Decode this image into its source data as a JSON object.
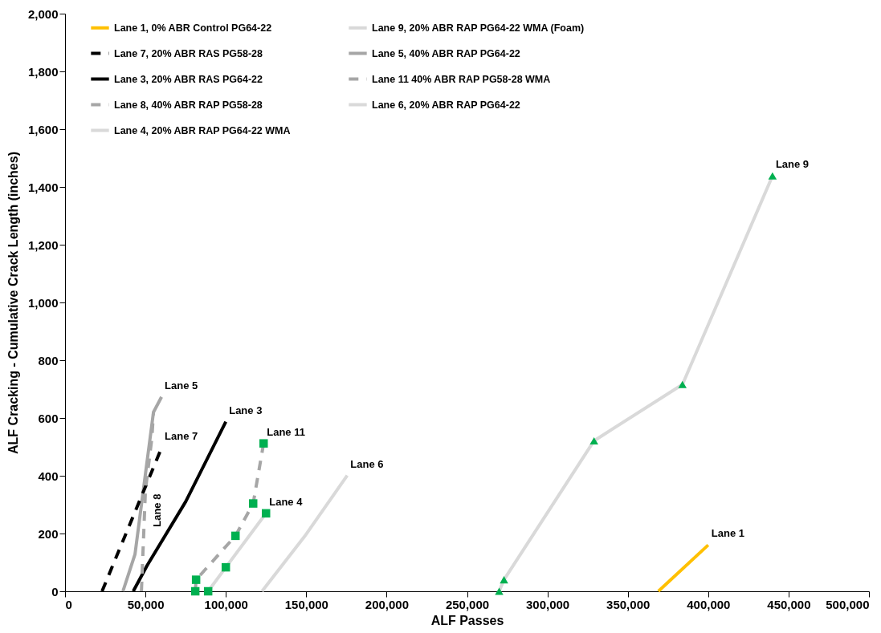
{
  "chart_data": {
    "type": "line",
    "xlabel": "ALF Passes",
    "ylabel": "ALF Cracking - Cumulative Crack Length (inches)",
    "xlim": [
      0,
      500000
    ],
    "xticks": [
      0,
      {
        "value": 50000,
        "label": "50,000"
      },
      {
        "value": 100000,
        "label": "100,000"
      },
      {
        "value": 150000,
        "label": "150,000"
      },
      {
        "value": 200000,
        "label": "200,000"
      },
      {
        "value": 250000,
        "label": "250,000"
      },
      {
        "value": 300000,
        "label": "300,000"
      },
      {
        "value": 350000,
        "label": "350,000"
      },
      {
        "value": 400000,
        "label": "400,000"
      },
      {
        "value": 450000,
        "label": "450,000"
      },
      {
        "value": 500000,
        "label": "500,000"
      }
    ],
    "ylim": [
      0,
      2000
    ],
    "yticks": [
      0,
      200,
      400,
      600,
      800,
      {
        "value": 1000,
        "label": "1,000"
      },
      {
        "value": 1200,
        "label": "1,200"
      },
      {
        "value": 1400,
        "label": "1,400"
      },
      {
        "value": 1600,
        "label": "1,600"
      },
      {
        "value": 1800,
        "label": "1,800"
      },
      {
        "value": 2000,
        "label": "2,000"
      }
    ],
    "grid": false,
    "legend": "top",
    "series": [
      {
        "name": "Lane 1,  0% ABR Control PG64-22",
        "color": "#ffc000",
        "line_style": "solid",
        "x": [
          369000,
          400000
        ],
        "values": [
          0,
          160
        ]
      },
      {
        "name": "Lane 3,  20% ABR RAS PG64-22",
        "color": "#000000",
        "line_style": "solid",
        "x": [
          42400,
          51000,
          75000,
          100000
        ],
        "values": [
          0,
          89,
          310,
          587
        ]
      },
      {
        "name": "Lane 4,  20% ABR RAP PG64-22 WMA",
        "color": "#d9d9d9",
        "line_style": "solid",
        "x": [
          89000,
          100000,
          125000
        ],
        "values": [
          0,
          83,
          270
        ]
      },
      {
        "name": "Lane 5,  40% ABR RAP PG64-22",
        "color": "#a6a6a6",
        "line_style": "solid",
        "x": [
          36000,
          43500,
          55000,
          60000
        ],
        "values": [
          0,
          128,
          620,
          673
        ]
      },
      {
        "name": "Lane 6, 20% ABR RAP PG64-22",
        "color": "#d9d9d9",
        "line_style": "solid",
        "x": [
          122500,
          149000,
          175500
        ],
        "values": [
          0,
          190,
          401
        ]
      },
      {
        "name": "Lane 7, 20% ABR RAS PG58-28",
        "color": "#000000",
        "line_style": "dashed",
        "x": [
          23000,
          60000
        ],
        "values": [
          0,
          496
        ]
      },
      {
        "name": "Lane 8, 40% ABR RAP PG58-28",
        "color": "#a6a6a6",
        "line_style": "dashed",
        "x": [
          47500,
          50000,
          54000,
          55000
        ],
        "values": [
          0,
          350,
          530,
          620
        ]
      },
      {
        "name": "Lane 9, 20% ABR RAP PG64-22 WMA (Foam)",
        "color": "#d9d9d9",
        "line_style": "solid",
        "x": [
          270000,
          273000,
          329000,
          384000,
          440000
        ],
        "values": [
          0,
          40,
          521,
          716,
          1438
        ]
      },
      {
        "name": "Lane 11 40% ABR RAP PG58-28 WMA",
        "color": "#a6a6a6",
        "line_style": "dashed",
        "x": [
          81000,
          81500,
          106000,
          117000,
          123500
        ],
        "values": [
          0,
          40,
          192,
          304,
          512
        ]
      },
      {
        "type": "scatter",
        "marker": "square",
        "color": "#00b050",
        "x": [
          89000,
          100000,
          125000
        ],
        "values": [
          0,
          83,
          270
        ]
      },
      {
        "type": "scatter",
        "marker": "triangle",
        "color": "#00b050",
        "x": [
          270000,
          273000,
          329000,
          384000,
          440000
        ],
        "values": [
          0,
          40,
          521,
          716,
          1438
        ]
      },
      {
        "type": "scatter",
        "marker": "square",
        "color": "#00b050",
        "x": [
          81000,
          81500,
          106000,
          117000,
          123500
        ],
        "values": [
          0,
          40,
          192,
          304,
          512
        ]
      }
    ],
    "annotations": [
      {
        "text": "Lane 1",
        "x": 400000,
        "y": 160
      },
      {
        "text": "Lane 3",
        "x": 100000,
        "y": 587
      },
      {
        "text": "Lane 4",
        "x": 125000,
        "y": 270
      },
      {
        "text": "Lane 5",
        "x": 60000,
        "y": 673
      },
      {
        "text": "Lane 6",
        "x": 175500,
        "y": 401
      },
      {
        "text": "Lane 7",
        "x": 60000,
        "y": 496
      },
      {
        "text": "Lane 9",
        "x": 440000,
        "y": 1438
      },
      {
        "text": "Lane 11",
        "x": 123500,
        "y": 512
      },
      "Lane 8"
    ]
  }
}
